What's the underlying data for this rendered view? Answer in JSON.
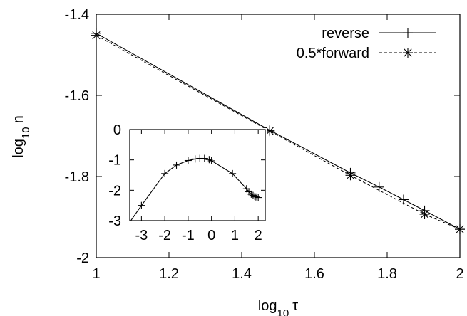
{
  "chart_data": [
    {
      "type": "line",
      "title": "",
      "xlabel": "log10 τ",
      "ylabel": "log10 n",
      "xlim": [
        1.0,
        2.0
      ],
      "ylim": [
        -2.0,
        -1.4
      ],
      "xticks": [
        1.0,
        1.2,
        1.4,
        1.6,
        1.8,
        2.0
      ],
      "xtick_labels": [
        "1",
        "1.2",
        "1.4",
        "1.6",
        "1.8",
        "2"
      ],
      "yticks": [
        -2.0,
        -1.8,
        -1.6,
        -1.4
      ],
      "ytick_labels": [
        "-2",
        "-1.8",
        "-1.6",
        "-1.4"
      ],
      "grid": false,
      "legend_position": "top-right",
      "series": [
        {
          "name": "reverse",
          "marker": "plus",
          "dash": "solid",
          "x": [
            1.0,
            1.477,
            1.699,
            1.778,
            1.845,
            1.903,
            2.0
          ],
          "y": [
            -1.447,
            -1.686,
            -1.791,
            -1.826,
            -1.857,
            -1.884,
            -1.93
          ]
        },
        {
          "name": "0.5*forward",
          "marker": "star",
          "dash": "dashed",
          "x": [
            1.0,
            1.477,
            1.699,
            1.903,
            2.0
          ],
          "y": [
            -1.452,
            -1.688,
            -1.797,
            -1.893,
            -1.93
          ]
        }
      ]
    },
    {
      "type": "line",
      "title": "",
      "xlabel": "",
      "ylabel": "",
      "xlim": [
        -3.5,
        2.3
      ],
      "ylim": [
        -3.0,
        0.0
      ],
      "xticks": [
        -3,
        -2,
        -1,
        0,
        1,
        2
      ],
      "xtick_labels": [
        "-3",
        "-2",
        "-1",
        "0",
        "1",
        "2"
      ],
      "yticks": [
        -3,
        -2,
        -1,
        0
      ],
      "ytick_labels": [
        "-3",
        "-2",
        "-1",
        "0"
      ],
      "grid": false,
      "series": [
        {
          "name": "",
          "marker": "plus",
          "dash": "solid",
          "x": [
            -3.5,
            -3.0,
            -2.0,
            -1.5,
            -1.0,
            -0.7,
            -0.5,
            -0.3,
            -0.1,
            0.0,
            0.9,
            1.5,
            1.6,
            1.7,
            1.78,
            1.85,
            1.9,
            2.0
          ],
          "y": [
            -3.05,
            -2.5,
            -1.45,
            -1.17,
            -1.02,
            -0.97,
            -0.95,
            -0.95,
            -0.99,
            -1.03,
            -1.45,
            -1.95,
            -2.05,
            -2.13,
            -2.17,
            -2.2,
            -2.22,
            -2.24
          ]
        }
      ]
    }
  ]
}
